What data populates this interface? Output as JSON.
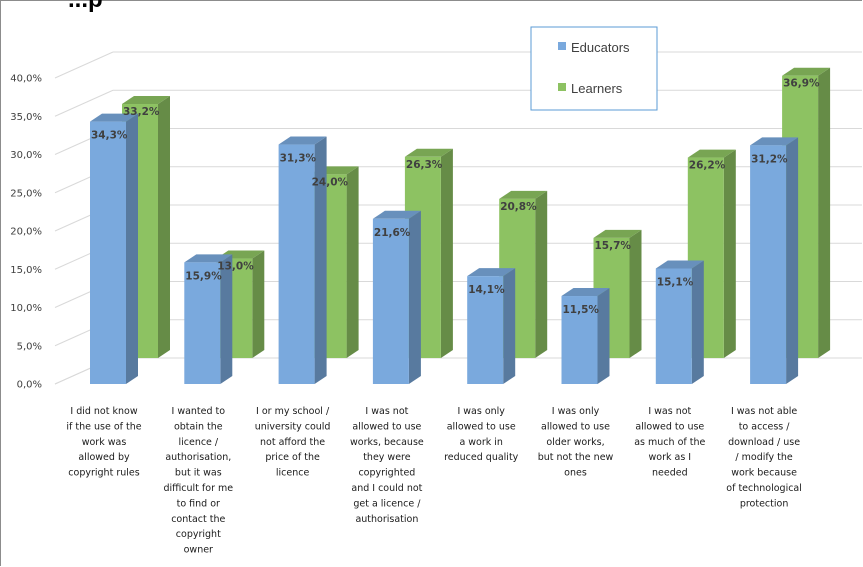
{
  "header": {
    "partial_title": "...p"
  },
  "colors": {
    "educators": "#7aa9dd",
    "learners": "#8dc262"
  },
  "chart_data": {
    "type": "bar",
    "title": "",
    "xlabel": "",
    "ylabel": "",
    "ylim": [
      0,
      40
    ],
    "ytick_labels": [
      "0,0%",
      "5,0%",
      "10,0%",
      "15,0%",
      "20,0%",
      "25,0%",
      "30,0%",
      "35,0%",
      "40,0%"
    ],
    "legend_position": "top-right",
    "grid": true,
    "categories": [
      "I did not know if the use of the work was allowed by copyright rules",
      "I wanted to obtain the licence / authorisation, but it was difficult for me to find or contact the copyright owner",
      "I or my school / university could not afford the price of the licence",
      "I was not allowed to use works, because they were copyrighted and I could not get a licence / authorisation",
      "I was only allowed to use a work in reduced quality",
      "I was only allowed to use older works, but not the new ones",
      "I was not allowed to use as much of the work as I needed",
      "I was not able to access / download / use / modify the work because of technological protection"
    ],
    "category_lines": [
      [
        "I did not know",
        "if the use of the",
        "work was",
        "allowed by",
        "copyright rules"
      ],
      [
        "I wanted to",
        "obtain the",
        "licence /",
        "authorisation,",
        "but it was",
        "difficult for me",
        "to find or",
        "contact the",
        "copyright",
        "owner"
      ],
      [
        "I or my school /",
        "university could",
        "not afford the",
        "price of the",
        "licence"
      ],
      [
        "I was not",
        "allowed to use",
        "works, because",
        "they were",
        "copyrighted",
        "and I could not",
        "get a licence /",
        "authorisation"
      ],
      [
        "I was only",
        "allowed to use",
        "a work in",
        "reduced quality"
      ],
      [
        "I was only",
        "allowed to use",
        "older works,",
        "but not the new",
        "ones"
      ],
      [
        "I was not",
        "allowed to use",
        "as much of the",
        "work as I",
        "needed"
      ],
      [
        "I was not able",
        "to access /",
        "download / use",
        "/ modify the",
        "work because",
        "of technological",
        "protection"
      ]
    ],
    "series": [
      {
        "name": "Educators",
        "values": [
          34.3,
          15.9,
          31.3,
          21.6,
          14.1,
          11.5,
          15.1,
          31.2
        ],
        "labels": [
          "34,3%",
          "15,9%",
          "31,3%",
          "21,6%",
          "14,1%",
          "11,5%",
          "15,1%",
          "31,2%"
        ]
      },
      {
        "name": "Learners",
        "values": [
          33.2,
          13.0,
          24.0,
          26.3,
          20.8,
          15.7,
          26.2,
          36.9
        ],
        "labels": [
          "33,2%",
          "13,0%",
          "24,0%",
          "26,3%",
          "20,8%",
          "15,7%",
          "26,2%",
          "36,9%"
        ]
      }
    ]
  }
}
